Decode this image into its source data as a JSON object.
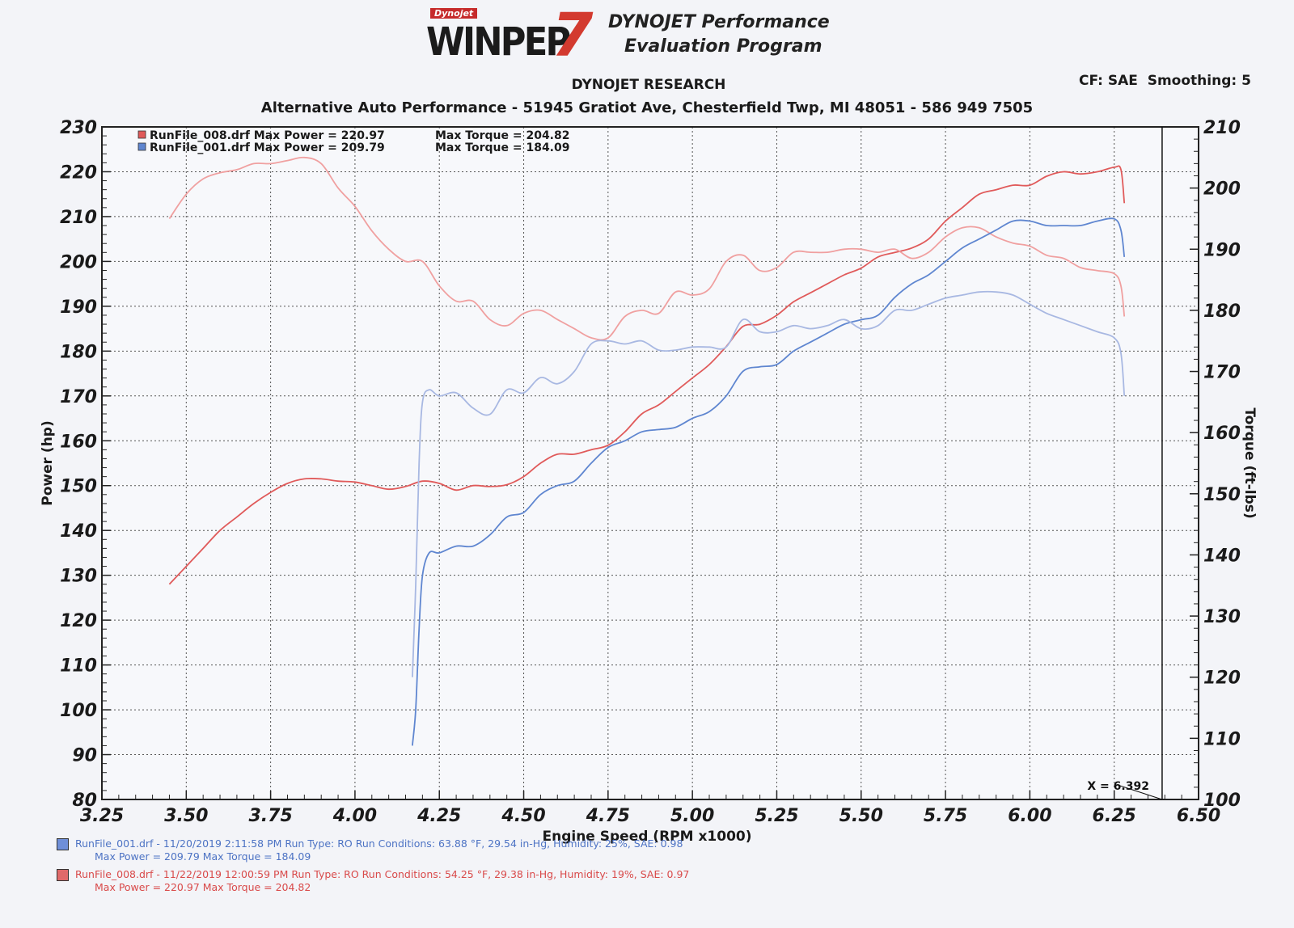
{
  "logo": {
    "small": "Dynojet",
    "main": "WINPEP",
    "seven": "7"
  },
  "header": {
    "brand_line1": "DYNOJET Performance",
    "brand_line2": "Evaluation Program",
    "org": "DYNOJET RESEARCH",
    "address": "Alternative Auto Performance - 51945 Gratiot Ave, Chesterfield Twp, MI 48051 - 586 949 7505",
    "cf_smoothing": "CF: SAE  Smoothing: 5"
  },
  "colors": {
    "run008": "#e05a5a",
    "run001": "#5f86d0",
    "grid": "#5a5a5a"
  },
  "chart_data": {
    "type": "line",
    "xlabel": "Engine Speed (RPM x1000)",
    "ylabel": "Power (hp)",
    "y2label": "Torque (ft-lbs)",
    "xlim": [
      3.25,
      6.5
    ],
    "ylim": [
      80,
      230
    ],
    "y2lim": [
      100,
      210
    ],
    "x_ticks": [
      "3.25",
      "3.50",
      "3.75",
      "4.00",
      "4.25",
      "4.50",
      "4.75",
      "5.00",
      "5.25",
      "5.50",
      "5.75",
      "6.00",
      "6.25",
      "6.50"
    ],
    "y_ticks": [
      "230",
      "220",
      "210",
      "200",
      "190",
      "180",
      "170",
      "160",
      "150",
      "140",
      "130",
      "120",
      "110",
      "100",
      "90",
      "80"
    ],
    "y2_ticks": [
      "210",
      "200",
      "190",
      "180",
      "170",
      "160",
      "150",
      "140",
      "130",
      "120",
      "110",
      "100"
    ],
    "cursor": {
      "x": 6.392,
      "label": "X = 6.392"
    },
    "legend": [
      {
        "text": "RunFile_008.drf Max Power = 220.97",
        "torque": "Max Torque = 204.82",
        "color": "#e05a5a"
      },
      {
        "text": "RunFile_001.drf Max Power = 209.79",
        "torque": "Max Torque = 184.09",
        "color": "#5f86d0"
      }
    ],
    "series": [
      {
        "name": "RunFile_008.drf",
        "quantity": "power",
        "axis": "left",
        "color": "#e05a5a",
        "x": [
          3.45,
          3.5,
          3.55,
          3.6,
          3.65,
          3.7,
          3.75,
          3.8,
          3.85,
          3.9,
          3.95,
          4.0,
          4.05,
          4.1,
          4.15,
          4.2,
          4.25,
          4.3,
          4.35,
          4.4,
          4.45,
          4.5,
          4.55,
          4.6,
          4.65,
          4.7,
          4.75,
          4.8,
          4.85,
          4.9,
          4.95,
          5.0,
          5.05,
          5.1,
          5.15,
          5.2,
          5.25,
          5.3,
          5.35,
          5.4,
          5.45,
          5.5,
          5.55,
          5.6,
          5.65,
          5.7,
          5.75,
          5.8,
          5.85,
          5.9,
          5.95,
          6.0,
          6.05,
          6.1,
          6.15,
          6.2,
          6.25,
          6.27,
          6.28
        ],
        "y": [
          128,
          132,
          136,
          140,
          143,
          146,
          148.5,
          150.5,
          151.5,
          151.5,
          151,
          150.8,
          150,
          149.2,
          149.8,
          151,
          150.5,
          149,
          150,
          149.8,
          150.2,
          152,
          155,
          157,
          157,
          158,
          159,
          162,
          166,
          168,
          171,
          174,
          177,
          181,
          185.5,
          186,
          188,
          191,
          193,
          195,
          197,
          198.5,
          201,
          202,
          203,
          205,
          209,
          212,
          215,
          216,
          217,
          217,
          219,
          220,
          219.5,
          220,
          221,
          220.5,
          213
        ],
        "display": "#e05a5a"
      },
      {
        "name": "RunFile_008.drf",
        "quantity": "torque",
        "axis": "right",
        "color": "#f0a0a0",
        "x": [
          3.45,
          3.5,
          3.55,
          3.6,
          3.65,
          3.7,
          3.75,
          3.8,
          3.85,
          3.9,
          3.95,
          4.0,
          4.05,
          4.1,
          4.15,
          4.2,
          4.25,
          4.3,
          4.35,
          4.4,
          4.45,
          4.5,
          4.55,
          4.6,
          4.65,
          4.7,
          4.75,
          4.8,
          4.85,
          4.9,
          4.95,
          5.0,
          5.05,
          5.1,
          5.15,
          5.2,
          5.25,
          5.3,
          5.35,
          5.4,
          5.45,
          5.5,
          5.55,
          5.6,
          5.65,
          5.7,
          5.75,
          5.8,
          5.85,
          5.9,
          5.95,
          6.0,
          6.05,
          6.1,
          6.15,
          6.2,
          6.25,
          6.27,
          6.28
        ],
        "y": [
          195,
          199,
          201.5,
          202.5,
          203,
          204,
          204,
          204.5,
          205,
          204,
          200,
          197,
          193,
          190,
          188,
          188,
          184,
          181.5,
          181.5,
          178.5,
          177.5,
          179.5,
          180,
          178.5,
          177,
          175.5,
          175.5,
          179,
          180,
          179.5,
          183,
          182.5,
          183.5,
          188,
          189,
          186.5,
          187,
          189.5,
          189.5,
          189.5,
          190,
          190,
          189.5,
          190,
          188.5,
          189.5,
          192,
          193.5,
          193.5,
          192,
          191,
          190.5,
          189,
          188.5,
          187,
          186.5,
          186,
          184,
          179
        ]
      },
      {
        "name": "RunFile_001.drf",
        "quantity": "power",
        "axis": "left",
        "color": "#5f86d0",
        "x": [
          4.17,
          4.18,
          4.19,
          4.2,
          4.22,
          4.25,
          4.3,
          4.35,
          4.4,
          4.45,
          4.5,
          4.55,
          4.6,
          4.65,
          4.7,
          4.75,
          4.8,
          4.85,
          4.9,
          4.95,
          5.0,
          5.05,
          5.1,
          5.15,
          5.2,
          5.25,
          5.3,
          5.35,
          5.4,
          5.45,
          5.5,
          5.55,
          5.6,
          5.65,
          5.7,
          5.75,
          5.8,
          5.85,
          5.9,
          5.95,
          6.0,
          6.05,
          6.1,
          6.15,
          6.2,
          6.25,
          6.27,
          6.28
        ],
        "y": [
          92,
          100,
          118,
          130,
          135,
          135,
          136.5,
          136.5,
          139,
          143,
          144,
          148,
          150,
          151,
          155,
          158.5,
          160,
          162,
          162.5,
          163,
          165,
          166.5,
          170,
          175.5,
          176.5,
          177,
          180,
          182,
          184,
          186,
          187,
          188,
          192,
          195,
          197,
          200,
          203,
          205,
          207,
          209,
          209,
          208,
          208,
          208,
          209,
          209.5,
          207,
          201
        ]
      },
      {
        "name": "RunFile_001.drf",
        "quantity": "torque",
        "axis": "right",
        "color": "#a8b8e2",
        "x": [
          4.17,
          4.18,
          4.19,
          4.2,
          4.22,
          4.25,
          4.3,
          4.35,
          4.4,
          4.45,
          4.5,
          4.55,
          4.6,
          4.65,
          4.7,
          4.75,
          4.8,
          4.85,
          4.9,
          4.95,
          5.0,
          5.05,
          5.1,
          5.15,
          5.2,
          5.25,
          5.3,
          5.35,
          5.4,
          5.45,
          5.5,
          5.55,
          5.6,
          5.65,
          5.7,
          5.75,
          5.8,
          5.85,
          5.9,
          5.95,
          6.0,
          6.05,
          6.1,
          6.15,
          6.2,
          6.25,
          6.27,
          6.28
        ],
        "y": [
          120,
          135,
          155,
          165,
          167,
          166,
          166.5,
          164,
          163,
          167,
          166.5,
          169,
          168,
          170,
          174.5,
          175,
          174.5,
          175,
          173.5,
          173.5,
          174,
          174,
          174,
          178.5,
          176.5,
          176.5,
          177.5,
          177,
          177.5,
          178.5,
          177,
          177.5,
          180,
          180,
          181,
          182,
          182.5,
          183,
          183,
          182.5,
          181,
          179.5,
          178.5,
          177.5,
          176.5,
          175.5,
          173,
          166
        ]
      }
    ]
  },
  "footer": {
    "run001_line1": "RunFile_001.drf - 11/20/2019 2:11:58 PM  Run Type: RO  Run Conditions: 63.88 °F, 29.54 in-Hg, Humidity: 25%, SAE: 0.98",
    "run001_line2": "Max Power = 209.79  Max Torque = 184.09",
    "run008_line1": "RunFile_008.drf - 11/22/2019 12:00:59 PM  Run Type: RO  Run Conditions: 54.25 °F, 29.38 in-Hg, Humidity: 19%, SAE: 0.97",
    "run008_line2": "Max Power = 220.97  Max Torque = 204.82"
  }
}
